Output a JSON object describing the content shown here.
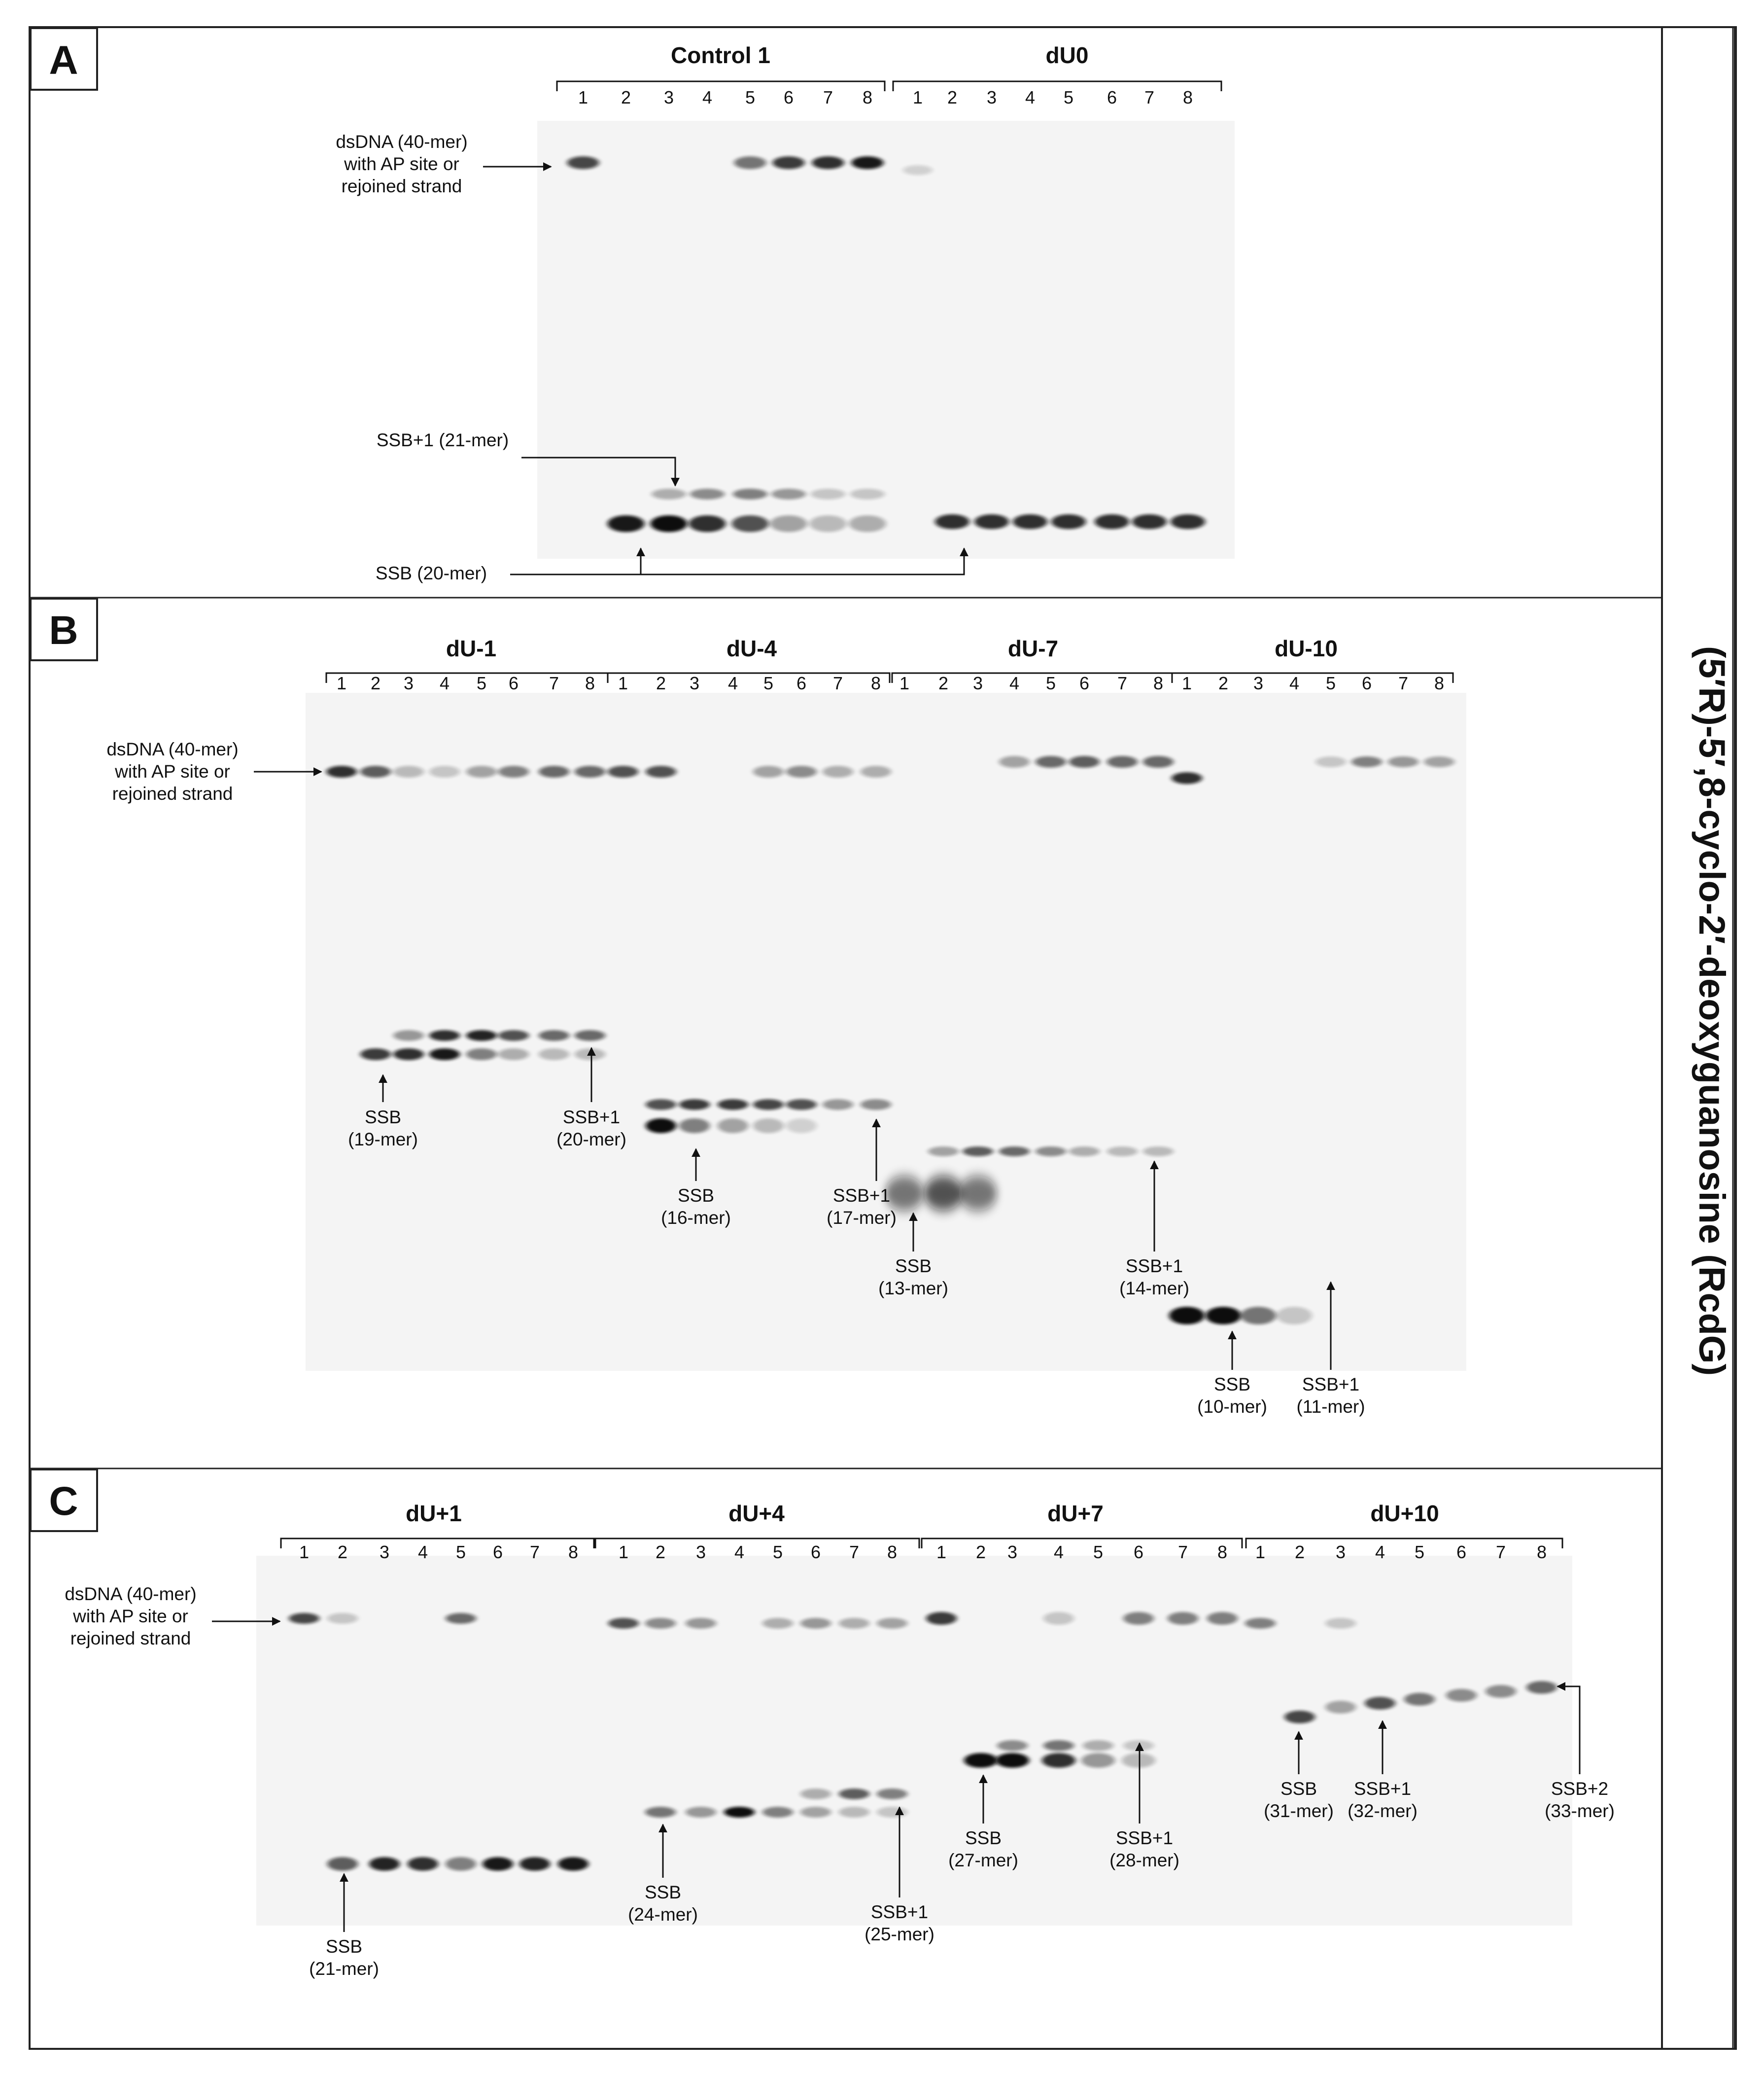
{
  "side_title": "(5′R)-5′,8-cyclo-2′-deoxyguanosine (RcdG)",
  "band_colors": {
    "ink": "#111111",
    "gel_background": "#f4f4f4",
    "frame": "#222222"
  },
  "lane_numbers": [
    "1",
    "2",
    "3",
    "4",
    "5",
    "6",
    "7",
    "8"
  ],
  "panels": [
    {
      "letter": "A",
      "groups": [
        {
          "title": "Control 1",
          "lanes": [
            1,
            2,
            3,
            4,
            5,
            6,
            7,
            8
          ]
        },
        {
          "title": "dU0",
          "lanes": [
            1,
            2,
            3,
            4,
            5,
            6,
            7,
            8
          ]
        }
      ],
      "labels": [
        {
          "lines": [
            "dsDNA (40-mer)",
            "with AP site or",
            "rejoined strand"
          ]
        },
        {
          "lines": [
            "SSB+1 (21-mer)"
          ]
        },
        {
          "lines": [
            "SSB (20-mer)"
          ]
        }
      ]
    },
    {
      "letter": "B",
      "groups": [
        {
          "title": "dU-1",
          "lanes": [
            1,
            2,
            3,
            4,
            5,
            6,
            7,
            8
          ]
        },
        {
          "title": "dU-4",
          "lanes": [
            1,
            2,
            3,
            4,
            5,
            6,
            7,
            8
          ]
        },
        {
          "title": "dU-7",
          "lanes": [
            1,
            2,
            3,
            4,
            5,
            6,
            7,
            8
          ]
        },
        {
          "title": "dU-10",
          "lanes": [
            1,
            2,
            3,
            4,
            5,
            6,
            7,
            8
          ]
        }
      ],
      "labels": [
        {
          "lines": [
            "dsDNA (40-mer)",
            "with AP site or",
            "rejoined strand"
          ]
        },
        {
          "lines": [
            "SSB",
            "(19-mer)"
          ]
        },
        {
          "lines": [
            "SSB+1",
            "(20-mer)"
          ]
        },
        {
          "lines": [
            "SSB",
            "(16-mer)"
          ]
        },
        {
          "lines": [
            "SSB+1",
            "(17-mer)"
          ]
        },
        {
          "lines": [
            "SSB",
            "(13-mer)"
          ]
        },
        {
          "lines": [
            "SSB+1",
            "(14-mer)"
          ]
        },
        {
          "lines": [
            "SSB",
            "(10-mer)"
          ]
        },
        {
          "lines": [
            "SSB+1",
            "(11-mer)"
          ]
        }
      ]
    },
    {
      "letter": "C",
      "groups": [
        {
          "title": "dU+1",
          "lanes": [
            1,
            2,
            3,
            4,
            5,
            6,
            7,
            8
          ]
        },
        {
          "title": "dU+4",
          "lanes": [
            1,
            2,
            3,
            4,
            5,
            6,
            7,
            8
          ]
        },
        {
          "title": "dU+7",
          "lanes": [
            1,
            2,
            3,
            4,
            5,
            6,
            7,
            8
          ]
        },
        {
          "title": "dU+10",
          "lanes": [
            1,
            2,
            3,
            4,
            5,
            6,
            7,
            8
          ]
        }
      ],
      "labels": [
        {
          "lines": [
            "dsDNA (40-mer)",
            "with AP site or",
            "rejoined strand"
          ]
        },
        {
          "lines": [
            "SSB",
            "(21-mer)"
          ]
        },
        {
          "lines": [
            "SSB",
            "(24-mer)"
          ]
        },
        {
          "lines": [
            "SSB+1",
            "(25-mer)"
          ]
        },
        {
          "lines": [
            "SSB",
            "(27-mer)"
          ]
        },
        {
          "lines": [
            "SSB+1",
            "(28-mer)"
          ]
        },
        {
          "lines": [
            "SSB",
            "(31-mer)"
          ]
        },
        {
          "lines": [
            "SSB+1",
            "(32-mer)"
          ]
        },
        {
          "lines": [
            "SSB+2",
            "(33-mer)"
          ]
        }
      ]
    }
  ]
}
